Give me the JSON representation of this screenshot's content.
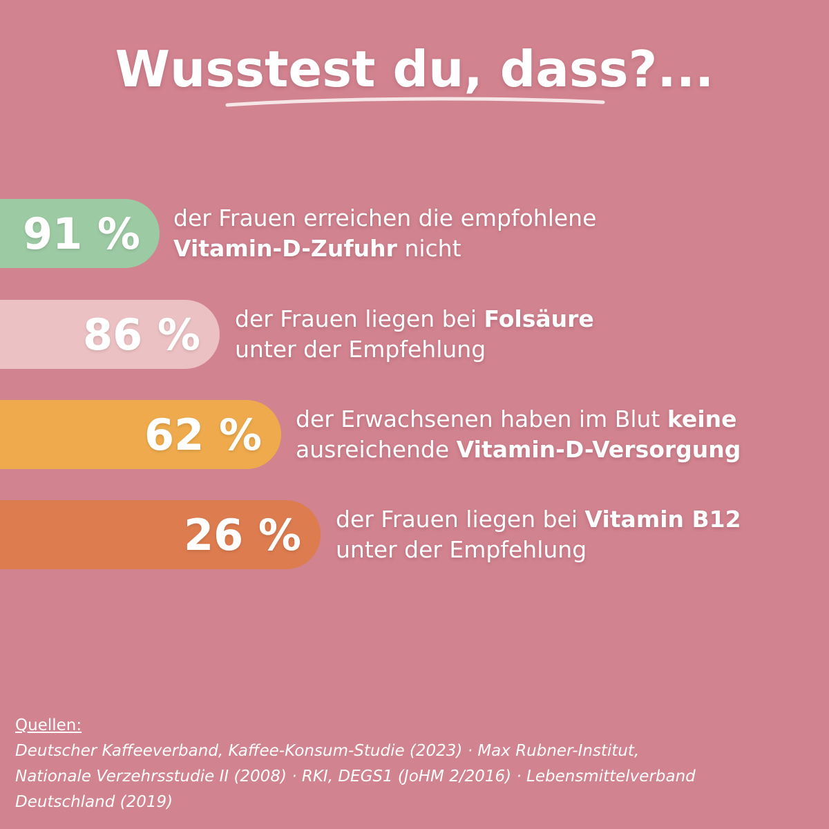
{
  "title": "Wusstest du, dass?...",
  "stats": [
    {
      "value": "91 %",
      "color": "#9ccaa3",
      "line1": [
        {
          "text": "der Frauen erreichen die empfohlene",
          "bold": false
        }
      ],
      "line2": [
        {
          "text": "Vitamin-D-Zufuhr",
          "bold": true
        },
        {
          "text": " nicht",
          "bold": false
        }
      ]
    },
    {
      "value": "86 %",
      "color": "#ecc1c3",
      "line1": [
        {
          "text": "der Frauen liegen bei ",
          "bold": false
        },
        {
          "text": "Folsäure",
          "bold": true
        }
      ],
      "line2": [
        {
          "text": "unter der Empfehlung",
          "bold": false
        }
      ]
    },
    {
      "value": "62 %",
      "color": "#eeaa4c",
      "line1": [
        {
          "text": "der Erwachsenen haben im Blut ",
          "bold": false
        },
        {
          "text": "keine",
          "bold": true
        }
      ],
      "line2": [
        {
          "text": "ausreichende ",
          "bold": false
        },
        {
          "text": "Vitamin-D-Versorgung",
          "bold": true
        }
      ]
    },
    {
      "value": "26 %",
      "color": "#dd7c4f",
      "line1": [
        {
          "text": "der Frauen liegen bei ",
          "bold": false
        },
        {
          "text": "Vitamin B12",
          "bold": true
        }
      ],
      "line2": [
        {
          "text": "unter der Empfehlung",
          "bold": false
        }
      ]
    }
  ],
  "sources": {
    "heading": "Quellen:",
    "line1": "Deutscher Kaffeeverband, Kaffee-Konsum-Studie (2023) · Max Rubner-Institut,",
    "line2": "Nationale Verzehrsstudie II (2008) · RKI, DEGS1 (JoHM 2/2016) · Lebensmittelverband",
    "line3": "Deutschland (2019)"
  }
}
